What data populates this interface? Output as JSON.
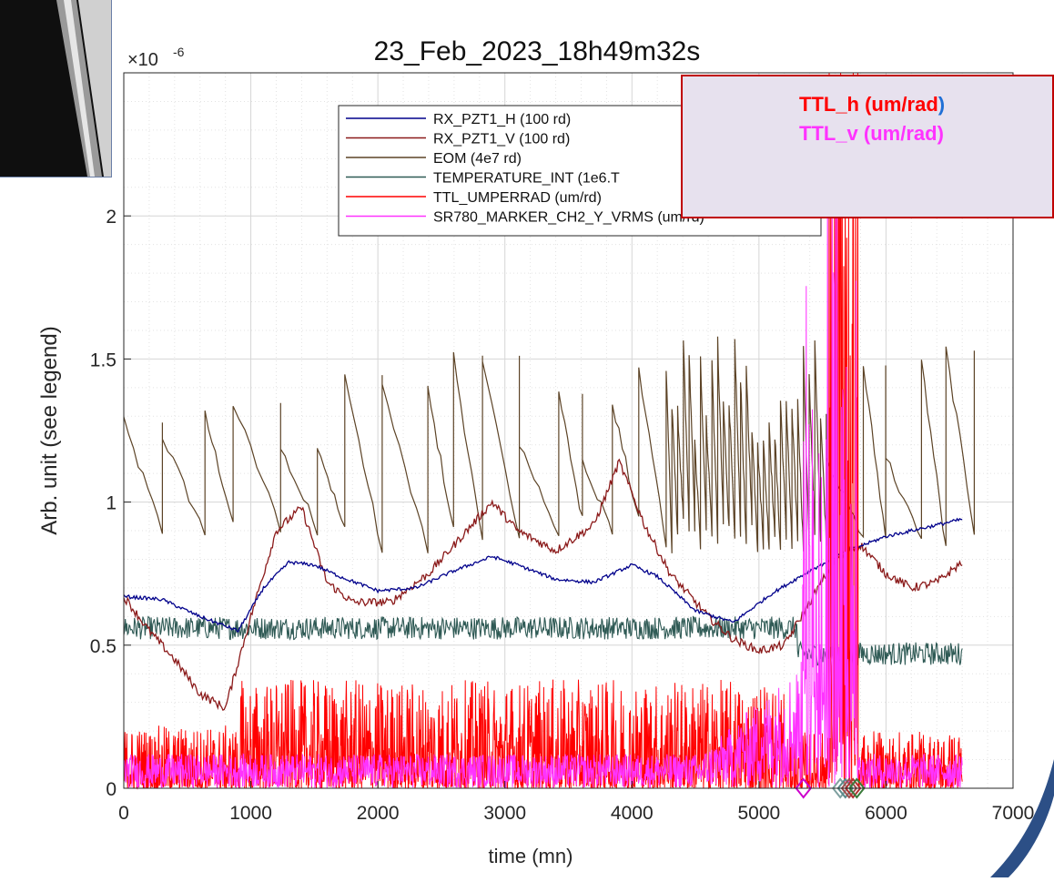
{
  "chart_data": {
    "type": "line",
    "title": "23_Feb_2023_18h49m32s",
    "xlabel": "time (mn)",
    "ylabel": "Arb. unit (see legend)",
    "y_multiplier": "×10",
    "y_exponent": "-6",
    "xlim": [
      0,
      7000
    ],
    "ylim": [
      0,
      2.5
    ],
    "xticks": [
      0,
      1000,
      2000,
      3000,
      4000,
      5000,
      6000,
      7000
    ],
    "yticks": [
      0,
      0.5,
      1,
      1.5,
      2
    ],
    "ytick_labels": [
      "0",
      "0.5",
      "1",
      "1.5",
      "2"
    ],
    "grid": "on",
    "legend_position": "top",
    "series": [
      {
        "name": "RX_PZT1_H (100 rd)",
        "color": "#00008b",
        "x": [
          0,
          300,
          600,
          900,
          1100,
          1300,
          1500,
          1700,
          2000,
          2300,
          2600,
          2900,
          3100,
          3400,
          3700,
          4000,
          4200,
          4500,
          4800,
          5100,
          5400,
          5700,
          6000,
          6300,
          6600
        ],
        "y": [
          0.67,
          0.66,
          0.6,
          0.55,
          0.7,
          0.79,
          0.78,
          0.74,
          0.69,
          0.7,
          0.76,
          0.81,
          0.78,
          0.73,
          0.72,
          0.78,
          0.74,
          0.62,
          0.58,
          0.68,
          0.76,
          0.83,
          0.88,
          0.91,
          0.94
        ]
      },
      {
        "name": "RX_PZT1_V (100 rd)",
        "color": "#8b1a1a",
        "x": [
          0,
          200,
          400,
          600,
          800,
          1000,
          1200,
          1400,
          1600,
          1800,
          2100,
          2400,
          2700,
          2900,
          3100,
          3400,
          3700,
          3900,
          4100,
          4300,
          4600,
          4800,
          5000,
          5200,
          5400,
          5600,
          5800,
          6000,
          6200,
          6400,
          6600
        ],
        "y": [
          0.67,
          0.55,
          0.45,
          0.33,
          0.28,
          0.6,
          0.9,
          0.98,
          0.72,
          0.65,
          0.65,
          0.75,
          0.9,
          1.0,
          0.9,
          0.83,
          0.92,
          1.14,
          0.92,
          0.75,
          0.6,
          0.52,
          0.48,
          0.5,
          0.65,
          0.8,
          0.85,
          0.75,
          0.7,
          0.72,
          0.79
        ]
      },
      {
        "name": "EOM (4e7 rd)",
        "color": "#5c4326"
      },
      {
        "name": "TEMPERATURE_INT (1e6.T",
        "color": "#2f5a55"
      },
      {
        "name": "TTL_UMPERRAD (um/rd)",
        "color": "#ff0000"
      },
      {
        "name": "SR780_MARKER_CH2_Y_VRMS (um/rd)",
        "color": "#ff33ff"
      }
    ]
  },
  "annotation": {
    "ttl_h_label": "TTL_h (um/rad",
    "ttl_h_paren": ")",
    "ttl_v_label": "TTL_v (um/rad)"
  }
}
